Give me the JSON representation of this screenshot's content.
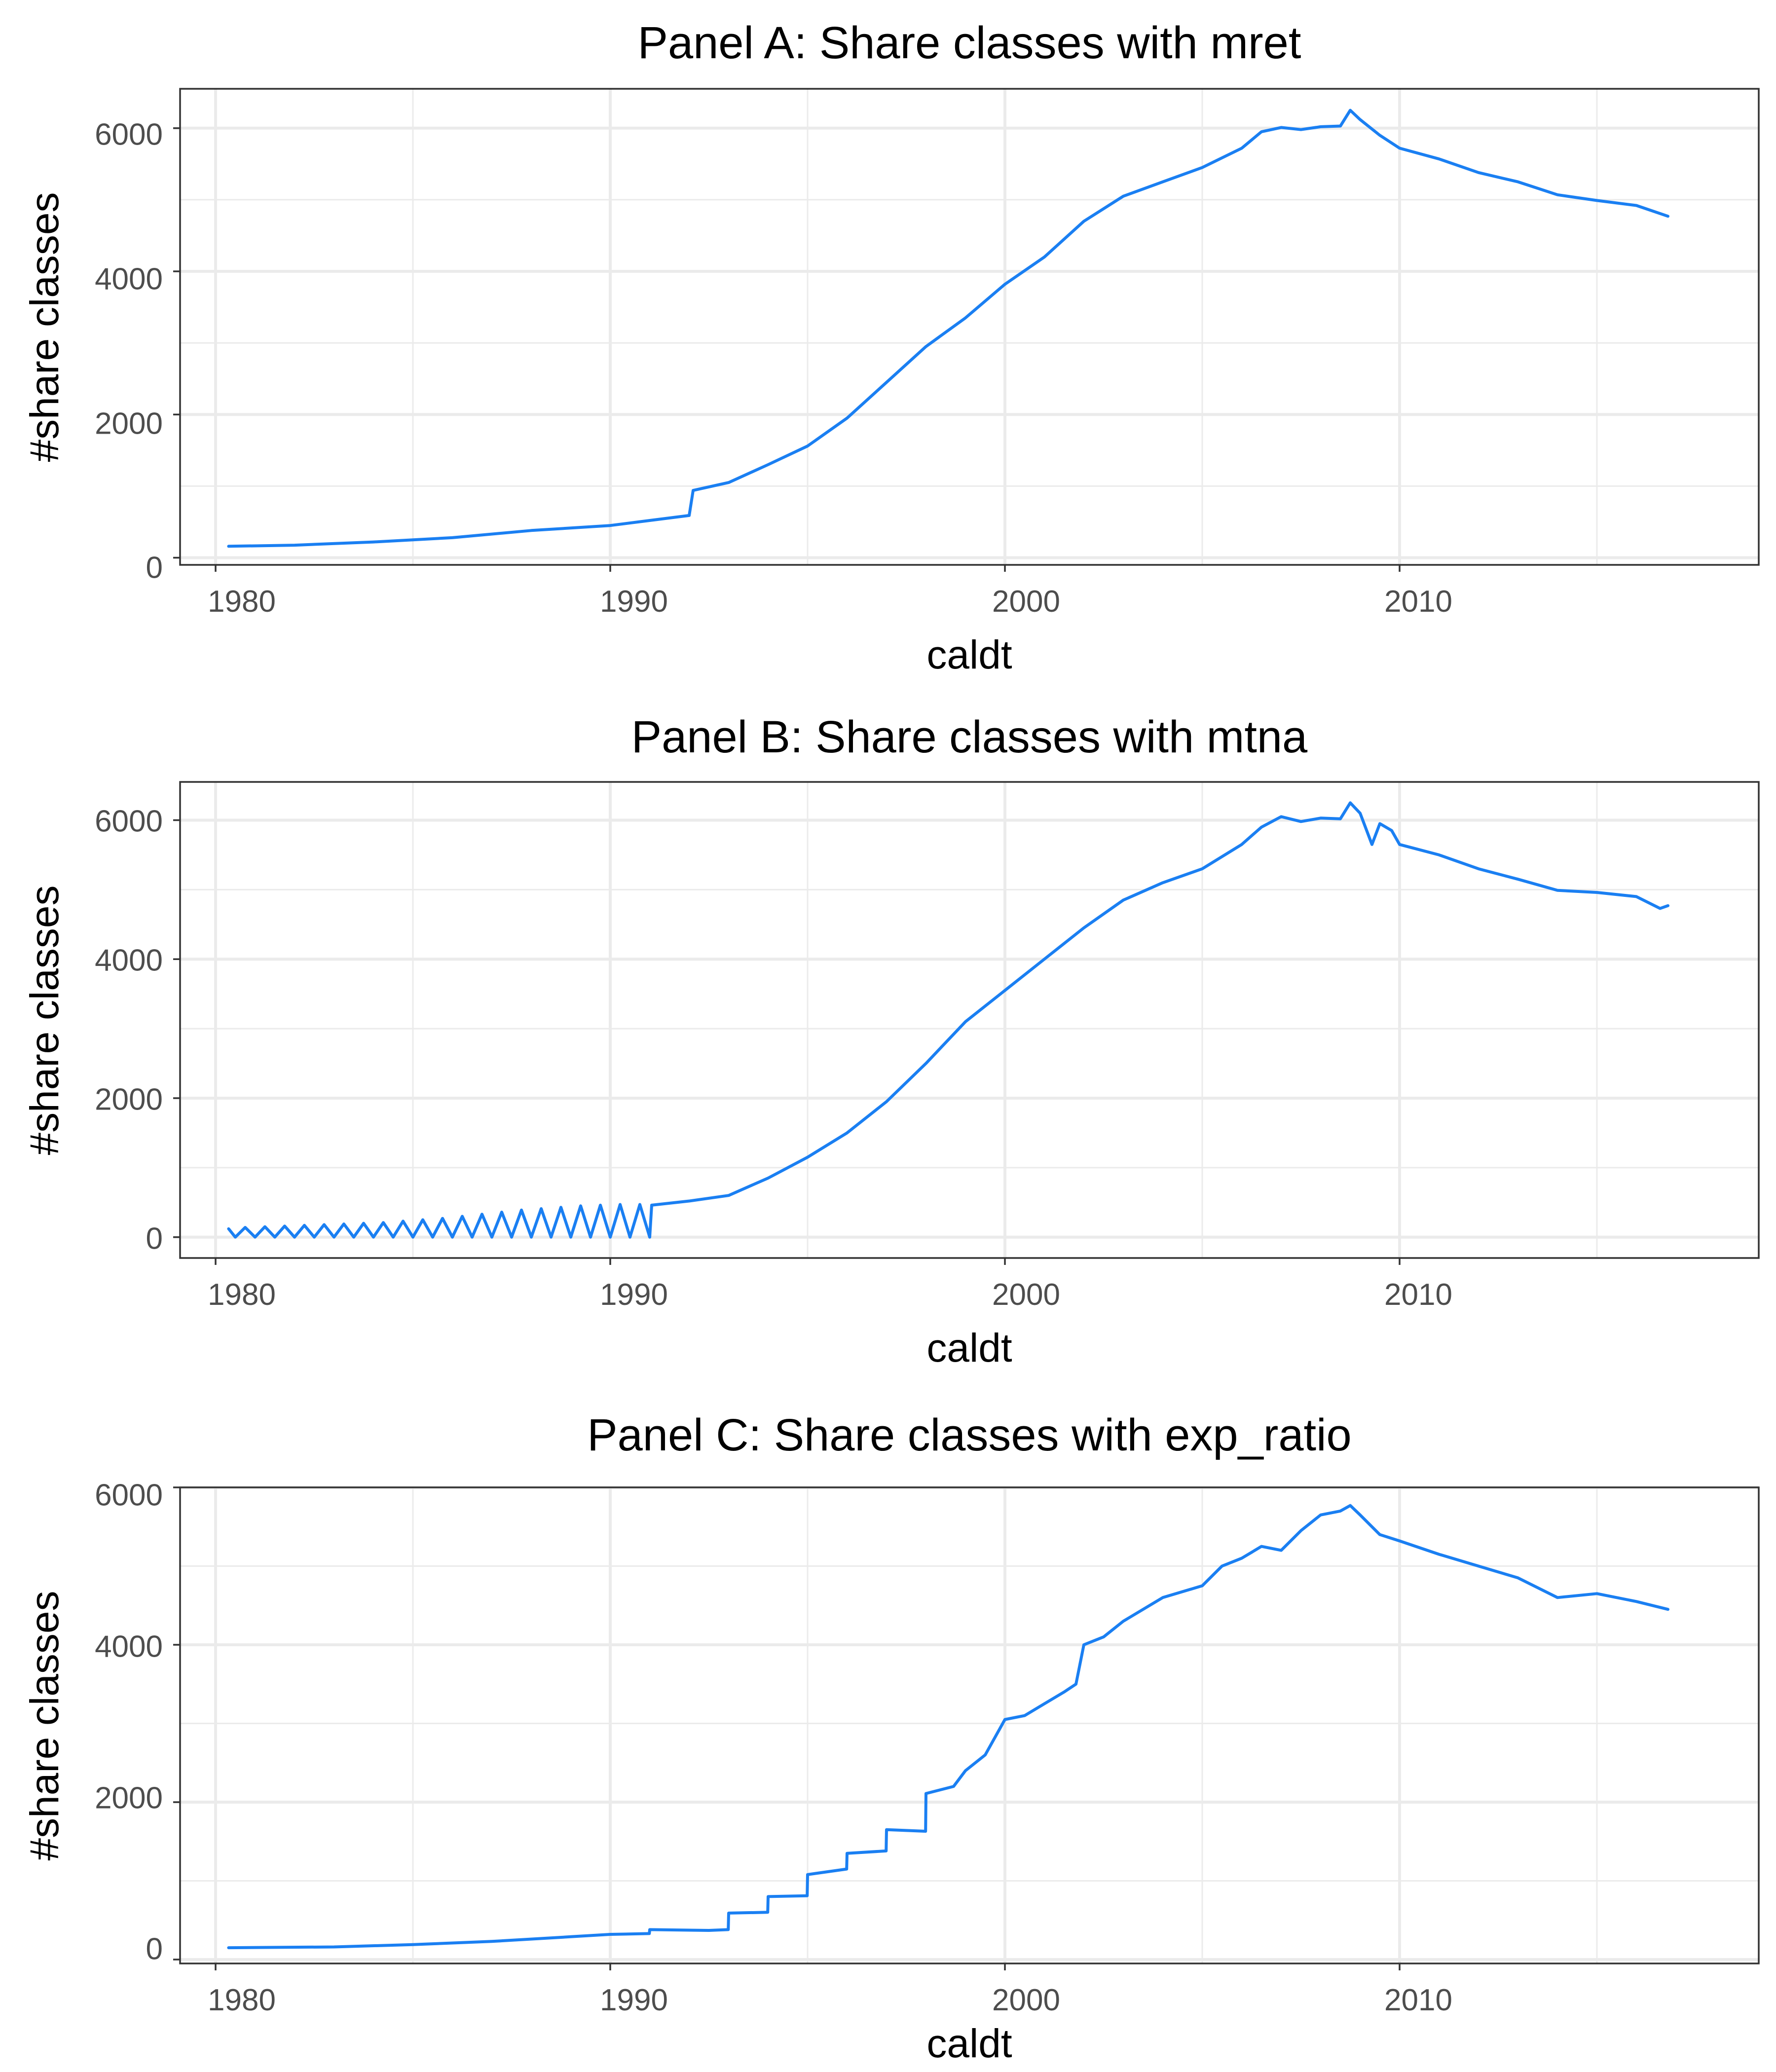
{
  "colors": {
    "line": "#1A7FF2",
    "grid": "#ebebeb",
    "border": "#333333",
    "tick_text": "#4d4d4d"
  },
  "chart_data": [
    {
      "type": "line",
      "title": "Panel A: Share classes with mret",
      "xlabel": "caldt",
      "ylabel": "#share classes",
      "x_ticks": [
        "1980",
        "1990",
        "2000",
        "2010"
      ],
      "y_ticks": [
        "0",
        "2000",
        "4000",
        "6000"
      ],
      "xlim": [
        1979.1,
        2019.1
      ],
      "ylim": [
        -100,
        6550
      ],
      "grid": true,
      "series": [
        {
          "values": [
            [
              1980.33,
              160
            ],
            [
              1982,
              175
            ],
            [
              1984,
              220
            ],
            [
              1986,
              280
            ],
            [
              1988,
              380
            ],
            [
              1990,
              450
            ],
            [
              1991,
              520
            ],
            [
              1992,
              590
            ],
            [
              1992.1,
              940
            ],
            [
              1993,
              1050
            ],
            [
              1994,
              1300
            ],
            [
              1995,
              1560
            ],
            [
              1996,
              1950
            ],
            [
              1997,
              2450
            ],
            [
              1998,
              2950
            ],
            [
              1999,
              3350
            ],
            [
              2000,
              3820
            ],
            [
              2001,
              4200
            ],
            [
              2002,
              4700
            ],
            [
              2003,
              5050
            ],
            [
              2004,
              5250
            ],
            [
              2005,
              5450
            ],
            [
              2006,
              5720
            ],
            [
              2006.5,
              5950
            ],
            [
              2007,
              6010
            ],
            [
              2007.5,
              5980
            ],
            [
              2008,
              6020
            ],
            [
              2008.5,
              6030
            ],
            [
              2008.75,
              6250
            ],
            [
              2009,
              6120
            ],
            [
              2009.5,
              5900
            ],
            [
              2010,
              5720
            ],
            [
              2011,
              5570
            ],
            [
              2012,
              5380
            ],
            [
              2013,
              5250
            ],
            [
              2014,
              5070
            ],
            [
              2015,
              4990
            ],
            [
              2016,
              4920
            ],
            [
              2016.8,
              4770
            ]
          ]
        }
      ]
    },
    {
      "type": "line",
      "title": "Panel B: Share classes with mtna",
      "xlabel": "caldt",
      "ylabel": "#share classes",
      "x_ticks": [
        "1980",
        "1990",
        "2000",
        "2010"
      ],
      "y_ticks": [
        "0",
        "2000",
        "4000",
        "6000"
      ],
      "xlim": [
        1979.1,
        2019.1
      ],
      "ylim": [
        -300,
        6550
      ],
      "grid": true,
      "series": [
        {
          "values": [
            [
              1980.33,
              120
            ],
            [
              1980.5,
              0
            ],
            [
              1980.75,
              140
            ],
            [
              1981,
              0
            ],
            [
              1981.25,
              150
            ],
            [
              1981.5,
              0
            ],
            [
              1981.75,
              160
            ],
            [
              1982,
              0
            ],
            [
              1982.25,
              170
            ],
            [
              1982.5,
              0
            ],
            [
              1982.75,
              180
            ],
            [
              1983,
              0
            ],
            [
              1983.25,
              190
            ],
            [
              1983.5,
              0
            ],
            [
              1983.75,
              200
            ],
            [
              1984,
              0
            ],
            [
              1984.25,
              210
            ],
            [
              1984.5,
              0
            ],
            [
              1984.75,
              230
            ],
            [
              1985,
              0
            ],
            [
              1985.25,
              250
            ],
            [
              1985.5,
              0
            ],
            [
              1985.75,
              270
            ],
            [
              1986,
              0
            ],
            [
              1986.25,
              300
            ],
            [
              1986.5,
              0
            ],
            [
              1986.75,
              330
            ],
            [
              1987,
              0
            ],
            [
              1987.25,
              360
            ],
            [
              1987.5,
              0
            ],
            [
              1987.75,
              390
            ],
            [
              1988,
              0
            ],
            [
              1988.25,
              410
            ],
            [
              1988.5,
              0
            ],
            [
              1988.75,
              430
            ],
            [
              1989,
              0
            ],
            [
              1989.25,
              450
            ],
            [
              1989.5,
              0
            ],
            [
              1989.75,
              460
            ],
            [
              1990,
              0
            ],
            [
              1990.25,
              470
            ],
            [
              1990.5,
              0
            ],
            [
              1990.75,
              470
            ],
            [
              1991,
              0
            ],
            [
              1991.05,
              460
            ],
            [
              1992,
              520
            ],
            [
              1993,
              600
            ],
            [
              1994,
              850
            ],
            [
              1995,
              1150
            ],
            [
              1996,
              1500
            ],
            [
              1997,
              1950
            ],
            [
              1998,
              2500
            ],
            [
              1999,
              3100
            ],
            [
              2000,
              3550
            ],
            [
              2001,
              4000
            ],
            [
              2002,
              4450
            ],
            [
              2003,
              4850
            ],
            [
              2004,
              5100
            ],
            [
              2005,
              5300
            ],
            [
              2006,
              5650
            ],
            [
              2006.5,
              5900
            ],
            [
              2007,
              6050
            ],
            [
              2007.5,
              5980
            ],
            [
              2008,
              6030
            ],
            [
              2008.5,
              6020
            ],
            [
              2008.75,
              6250
            ],
            [
              2009,
              6100
            ],
            [
              2009.3,
              5650
            ],
            [
              2009.5,
              5950
            ],
            [
              2009.8,
              5850
            ],
            [
              2010,
              5650
            ],
            [
              2011,
              5500
            ],
            [
              2012,
              5300
            ],
            [
              2013,
              5150
            ],
            [
              2014,
              4990
            ],
            [
              2015,
              4960
            ],
            [
              2016,
              4900
            ],
            [
              2016.6,
              4730
            ],
            [
              2016.8,
              4770
            ]
          ]
        }
      ]
    },
    {
      "type": "line",
      "title": "Panel C: Share classes with exp_ratio",
      "xlabel": "caldt",
      "ylabel": "#share classes",
      "x_ticks": [
        "1980",
        "1990",
        "2000",
        "2010"
      ],
      "y_ticks": [
        "0",
        "2000",
        "4000",
        "6000"
      ],
      "xlim": [
        1979.1,
        2019.1
      ],
      "ylim": [
        -50,
        6000
      ],
      "grid": true,
      "series": [
        {
          "values": [
            [
              1980.33,
              150
            ],
            [
              1983,
              160
            ],
            [
              1985,
              190
            ],
            [
              1987,
              230
            ],
            [
              1989,
              290
            ],
            [
              1990,
              320
            ],
            [
              1990.99,
              330
            ],
            [
              1991,
              380
            ],
            [
              1992.5,
              370
            ],
            [
              1992.99,
              380
            ],
            [
              1993,
              590
            ],
            [
              1993.99,
              600
            ],
            [
              1994,
              800
            ],
            [
              1994.99,
              810
            ],
            [
              1995,
              1080
            ],
            [
              1995.99,
              1150
            ],
            [
              1996,
              1350
            ],
            [
              1996.99,
              1380
            ],
            [
              1997,
              1650
            ],
            [
              1997.99,
              1630
            ],
            [
              1998,
              2110
            ],
            [
              1998.7,
              2200
            ],
            [
              1999,
              2400
            ],
            [
              1999.5,
              2600
            ],
            [
              2000,
              3050
            ],
            [
              2000.5,
              3100
            ],
            [
              2001,
              3250
            ],
            [
              2001.5,
              3400
            ],
            [
              2001.8,
              3500
            ],
            [
              2002,
              4000
            ],
            [
              2002.5,
              4100
            ],
            [
              2003,
              4300
            ],
            [
              2004,
              4600
            ],
            [
              2005,
              4750
            ],
            [
              2005.5,
              5000
            ],
            [
              2006,
              5100
            ],
            [
              2006.5,
              5250
            ],
            [
              2007,
              5200
            ],
            [
              2007.5,
              5450
            ],
            [
              2008,
              5650
            ],
            [
              2008.5,
              5700
            ],
            [
              2008.75,
              5770
            ],
            [
              2009,
              5650
            ],
            [
              2009.5,
              5400
            ],
            [
              2010,
              5320
            ],
            [
              2011,
              5150
            ],
            [
              2012,
              5000
            ],
            [
              2013,
              4850
            ],
            [
              2014,
              4600
            ],
            [
              2015,
              4650
            ],
            [
              2016,
              4550
            ],
            [
              2016.8,
              4450
            ]
          ]
        }
      ]
    }
  ]
}
